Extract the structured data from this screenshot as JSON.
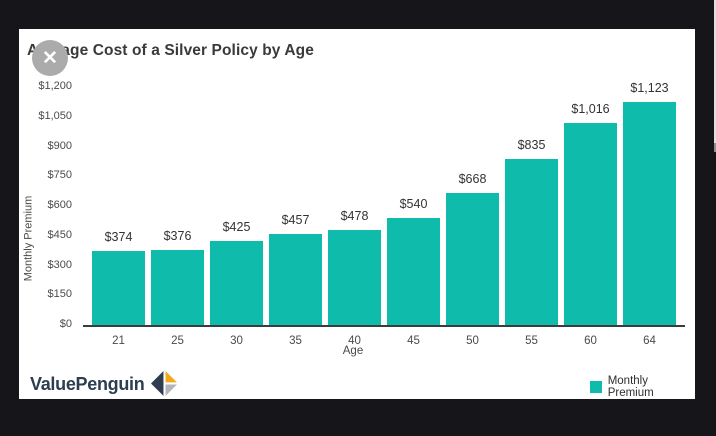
{
  "window": {
    "close_icon_glyph": "✕"
  },
  "colors": {
    "background": "#15151a",
    "card": "#ffffff",
    "bar_teal": "#0fbbab",
    "axis": "#3c3c3c",
    "text_dark": "#3a3a3a",
    "logo_navy": "#2e3d4f",
    "logo_amber": "#f5a91d",
    "logo_gray": "#b0b6bc"
  },
  "chart_data": {
    "type": "bar",
    "title": "Average Cost of a Silver Policy by Age",
    "categories": [
      "21",
      "25",
      "30",
      "35",
      "40",
      "45",
      "50",
      "55",
      "60",
      "64"
    ],
    "values": [
      374,
      376,
      425,
      457,
      478,
      540,
      668,
      835,
      1016,
      1123
    ],
    "value_labels": [
      "$374",
      "$376",
      "$425",
      "$457",
      "$478",
      "$540",
      "$668",
      "$835",
      "$1,016",
      "$1,123"
    ],
    "xlabel": "Age",
    "ylabel": "Monthly Premium",
    "ylim": [
      0,
      1200
    ],
    "ytick_step": 150,
    "yticks": [
      "$0",
      "$150",
      "$300",
      "$450",
      "$600",
      "$750",
      "$900",
      "$1,050",
      "$1,200"
    ],
    "grid": false,
    "bar_color": "#0fbbab",
    "legend_position": "bottom-right",
    "legend": [
      {
        "label": "Monthly Premium",
        "color": "#0fbbab"
      }
    ]
  },
  "branding": {
    "logo_text": "ValuePenguin"
  }
}
